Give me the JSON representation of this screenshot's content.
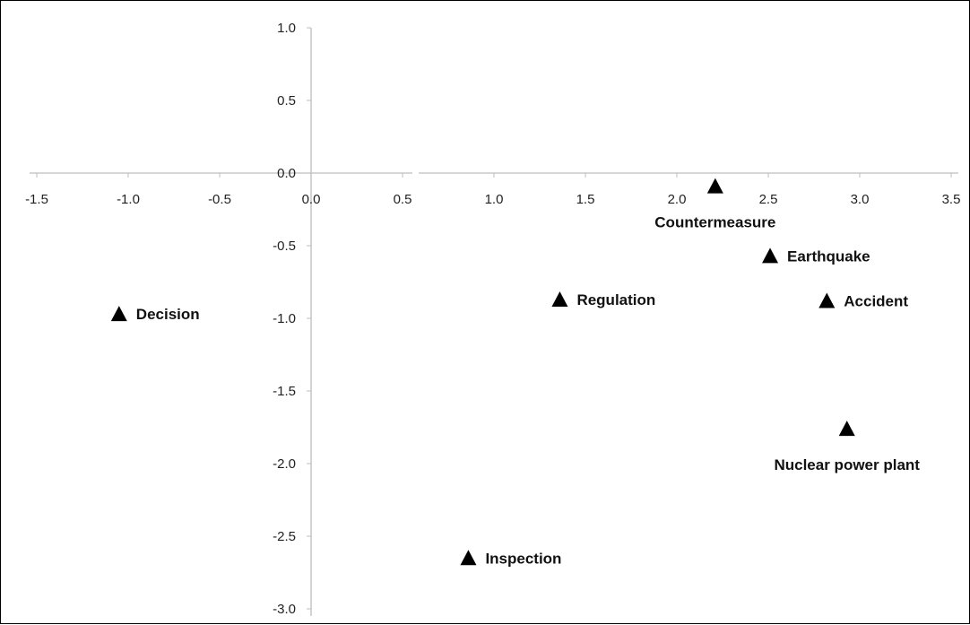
{
  "chart_data": {
    "type": "scatter",
    "title": "",
    "xlabel": "",
    "ylabel": "",
    "xlim": [
      -1.5,
      3.5
    ],
    "ylim": [
      -3.0,
      1.0
    ],
    "x_ticks": [
      "-1.5",
      "-1.0",
      "-0.5",
      "0.0",
      "0.5",
      "1.0",
      "1.5",
      "2.0",
      "2.5",
      "3.0",
      "3.5"
    ],
    "y_ticks": [
      "1.0",
      "0.5",
      "0.0",
      "-0.5",
      "-1.0",
      "-1.5",
      "-2.0",
      "-2.5",
      "-3.0"
    ],
    "grid": false,
    "marker": "triangle",
    "points": [
      {
        "label": "Countermeasure",
        "x": 2.21,
        "y": -0.09,
        "label_side": "below"
      },
      {
        "label": "Earthquake",
        "x": 2.51,
        "y": -0.57,
        "label_side": "right"
      },
      {
        "label": "Regulation",
        "x": 1.36,
        "y": -0.87,
        "label_side": "right"
      },
      {
        "label": "Accident",
        "x": 2.82,
        "y": -0.88,
        "label_side": "right"
      },
      {
        "label": "Decision",
        "x": -1.05,
        "y": -0.97,
        "label_side": "right"
      },
      {
        "label": "Nuclear power plant",
        "x": 2.93,
        "y": -1.76,
        "label_side": "below"
      },
      {
        "label": "Inspection",
        "x": 0.86,
        "y": -2.65,
        "label_side": "right"
      }
    ]
  }
}
